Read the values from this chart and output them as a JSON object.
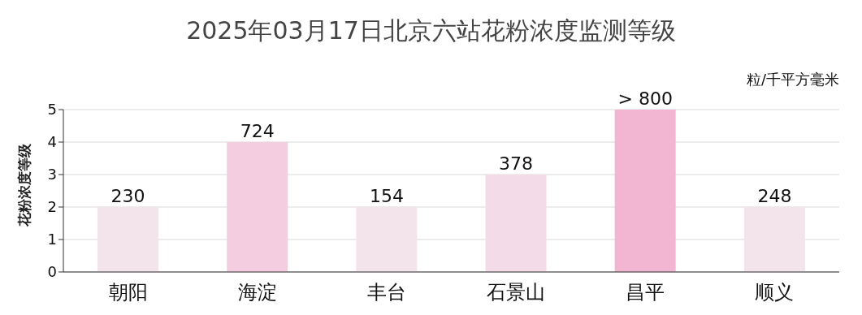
{
  "chart_data": {
    "type": "bar",
    "title": "2025年03月17日北京六站花粉浓度监测等级",
    "ylabel": "花粉浓度等级",
    "annotations": [
      "粒/千平方毫米",
      {
        "text": "230",
        "x": "朝阳",
        "y": 2
      },
      {
        "text": "724",
        "x": "海淀",
        "y": 4
      },
      {
        "text": "154",
        "x": "丰台",
        "y": 2
      },
      {
        "text": "378",
        "x": "石景山",
        "y": 3
      },
      {
        "text": "> 800",
        "x": "昌平",
        "y": 5
      },
      {
        "text": "248",
        "x": "顺义",
        "y": 2
      }
    ],
    "categories": [
      "朝阳",
      "海淀",
      "丰台",
      "石景山",
      "昌平",
      "顺义"
    ],
    "values": [
      2,
      4,
      2,
      3,
      5,
      2
    ],
    "colors": [
      "#f3e4ec",
      "#f5cde0",
      "#f3e4ec",
      "#f3dbe7",
      "#f2b5d2",
      "#f3e4ec"
    ],
    "ylim": [
      0,
      5
    ],
    "yticks": [
      0,
      1,
      2,
      3,
      4,
      5
    ],
    "grid": "y",
    "legend": false
  }
}
